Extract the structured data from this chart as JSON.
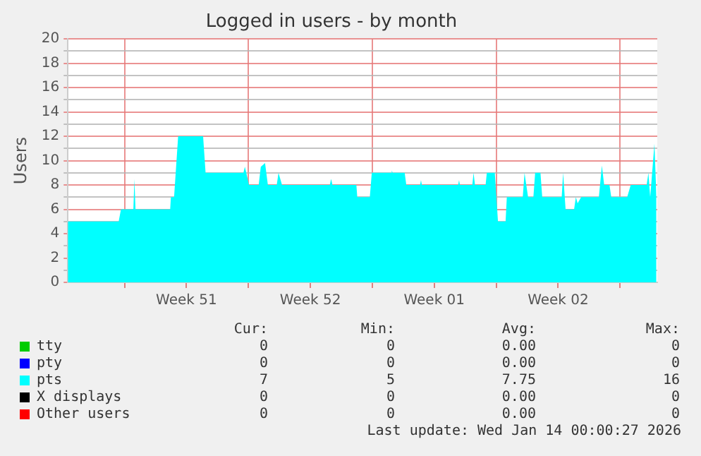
{
  "chart_data": {
    "type": "area",
    "title": "Logged in users - by month",
    "ylabel": "Users",
    "xlim": [
      "2025-12-11T19:12",
      "2026-01-14T02:24"
    ],
    "xticks": [
      {
        "value": "2025-12-15T00:00",
        "label": null
      },
      {
        "value": "2025-12-18T12:00",
        "label": "Week 51"
      },
      {
        "value": "2025-12-22T00:00",
        "label": null
      },
      {
        "value": "2025-12-25T12:00",
        "label": "Week 52"
      },
      {
        "value": "2025-12-29T00:00",
        "label": null
      },
      {
        "value": "2026-01-01T12:00",
        "label": "Week 01"
      },
      {
        "value": "2026-01-05T00:00",
        "label": null
      },
      {
        "value": "2026-01-08T12:00",
        "label": "Week 02"
      },
      {
        "value": "2026-01-12T00:00",
        "label": null
      }
    ],
    "ylim": [
      0,
      20
    ],
    "yticks": [
      0,
      {
        "value": 1,
        "label": null
      },
      2,
      {
        "value": 3,
        "label": null
      },
      4,
      {
        "value": 5,
        "label": null
      },
      6,
      {
        "value": 7,
        "label": null
      },
      8,
      {
        "value": 9,
        "label": null
      },
      10,
      {
        "value": 11,
        "label": null
      },
      12,
      {
        "value": 13,
        "label": null
      },
      14,
      {
        "value": 15,
        "label": null
      },
      16,
      {
        "value": 17,
        "label": null
      },
      18,
      {
        "value": 19,
        "label": null
      },
      20
    ],
    "grid": true,
    "legend": "bottom",
    "marker": "none",
    "series": [
      {
        "name": "tty",
        "color": "#00cc00"
      },
      {
        "name": "pty",
        "color": "#0000ff"
      },
      {
        "name": "pts",
        "color": "#00ffff",
        "x": [
          "2025-12-11T19:12",
          "2025-12-14T16:05",
          "2025-12-14T19:12",
          "2025-12-15T12:00",
          "2025-12-15T13:26",
          "2025-12-15T14:53",
          "2025-12-17T13:55",
          "2025-12-17T14:53",
          "2025-12-17T19:12",
          "2025-12-18T00:43",
          "2025-12-19T10:34",
          "2025-12-19T13:55",
          "2025-12-21T17:17",
          "2025-12-21T19:12",
          "2025-12-21T21:07",
          "2025-12-22T00:43",
          "2025-12-22T13:55",
          "2025-12-22T16:48",
          "2025-12-22T22:34",
          "2025-12-23T02:24",
          "2025-12-23T14:24",
          "2025-12-23T16:48",
          "2025-12-23T21:36",
          "2025-12-26T14:24",
          "2025-12-26T16:05",
          "2025-12-26T18:00",
          "2025-12-28T02:24",
          "2025-12-28T03:36",
          "2025-12-28T20:38",
          "2025-12-28T23:17",
          "2025-12-30T01:12",
          "2025-12-30T02:24",
          "2025-12-30T03:36",
          "2025-12-30T19:55",
          "2025-12-30T22:05",
          "2025-12-31T16:48",
          "2025-12-31T18:00",
          "2025-12-31T19:12",
          "2026-01-02T20:24",
          "2026-01-02T21:36",
          "2026-01-02T22:48",
          "2026-01-03T15:36",
          "2026-01-03T17:17",
          "2026-01-03T19:12",
          "2026-01-04T09:36",
          "2026-01-04T11:17",
          "2026-01-04T22:05",
          "2026-01-05T02:24",
          "2026-01-05T12:43",
          "2026-01-05T14:24",
          "2026-01-06T12:00",
          "2026-01-06T14:24",
          "2026-01-06T19:12",
          "2026-01-07T02:24",
          "2026-01-07T04:48",
          "2026-01-07T12:00",
          "2026-01-07T14:24",
          "2026-01-08T16:48",
          "2026-01-08T18:43",
          "2026-01-08T22:05",
          "2026-01-09T09:36",
          "2026-01-09T12:00",
          "2026-01-09T14:24",
          "2026-01-09T19:12",
          "2026-01-10T19:12",
          "2026-01-10T23:17",
          "2026-01-11T02:24",
          "2026-01-11T09:36",
          "2026-01-11T12:00",
          "2026-01-12T09:36",
          "2026-01-12T14:24",
          "2026-01-13T12:00",
          "2026-01-13T14:24",
          "2026-01-13T16:48",
          "2026-01-13T22:34",
          "2026-01-14T01:12"
        ],
        "values": [
          5,
          5,
          6,
          6,
          8.5,
          6,
          6,
          7,
          7,
          12,
          12,
          9,
          9,
          9.5,
          9,
          8,
          8,
          9.5,
          9.8,
          8,
          8,
          9,
          8,
          8,
          8.5,
          8,
          8,
          7,
          7,
          9,
          9,
          9.2,
          9,
          9,
          8,
          8,
          8.4,
          8,
          8,
          8.4,
          8,
          8,
          9,
          8,
          8,
          9,
          9,
          5,
          5,
          7,
          7,
          9,
          7,
          7,
          9,
          9,
          7,
          7,
          9,
          6,
          6,
          7,
          6.5,
          7,
          7,
          9.6,
          8,
          8,
          7,
          7,
          8,
          8,
          9,
          7,
          11.4,
          7
        ]
      },
      {
        "name": "X displays",
        "color": "#000000"
      },
      {
        "name": "Other users",
        "color": "#ff0000"
      }
    ],
    "annotations": [
      "Cur:",
      "Min:",
      "Avg:",
      "Max:",
      "0",
      "0",
      "0.00",
      "0",
      "0",
      "0",
      "0.00",
      "0",
      "7",
      "5",
      "7.75",
      "16",
      "0",
      "0",
      "0.00",
      "0",
      "0",
      "0",
      "0.00",
      "0",
      "Last update: Wed Jan 14 00:00:27 2026"
    ]
  }
}
